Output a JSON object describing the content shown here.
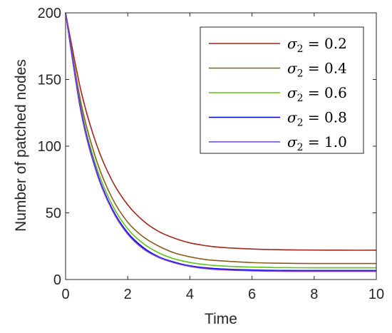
{
  "chart_data": {
    "type": "line",
    "xlabel": "Time",
    "ylabel": "Number of patched nodes",
    "xlim": [
      0,
      10
    ],
    "ylim": [
      0,
      200
    ],
    "xticks": [
      0,
      2,
      4,
      6,
      8,
      10
    ],
    "yticks": [
      0,
      50,
      100,
      150,
      200
    ],
    "grid": false,
    "legend_position": "top-right",
    "x": [
      0,
      0.5,
      1,
      1.5,
      2,
      2.5,
      3,
      3.5,
      4,
      4.5,
      5,
      6,
      7,
      8,
      9,
      10
    ],
    "series": [
      {
        "name": "σ₂ = 0.2",
        "color": "#a0291f",
        "values": [
          200,
          141,
          101,
          74,
          56,
          44,
          36,
          31,
          27.5,
          25.4,
          24.1,
          22.9,
          22.3,
          22.1,
          22.0,
          22.0
        ]
      },
      {
        "name": "σ₂ = 0.4",
        "color": "#8b5a1e",
        "values": [
          200,
          132,
          89,
          61,
          43,
          32,
          25,
          20,
          17,
          15,
          14,
          12.7,
          12.2,
          12.0,
          12.0,
          12.0
        ]
      },
      {
        "name": "σ₂ = 0.6",
        "color": "#5fc31a",
        "values": [
          200,
          128,
          84,
          56,
          38,
          27,
          20,
          15.5,
          12.8,
          11.2,
          10.2,
          9.3,
          8.9,
          8.8,
          8.8,
          8.8
        ]
      },
      {
        "name": "σ₂ = 0.8",
        "color": "#0000d4",
        "values": [
          200,
          126,
          81,
          53,
          35,
          24,
          17,
          13,
          10.3,
          8.8,
          7.9,
          7.1,
          6.8,
          6.7,
          6.7,
          6.7
        ]
      },
      {
        "name": "σ₂ = 1.0",
        "color": "#7a3fe0",
        "values": [
          200,
          125,
          80,
          52,
          34,
          23,
          16.5,
          12.5,
          9.8,
          8.2,
          7.3,
          6.5,
          6.2,
          6.1,
          6.1,
          6.1
        ]
      }
    ],
    "legend_labels": [
      {
        "sym": "σ",
        "sub": "2",
        "rest": " = 0.2"
      },
      {
        "sym": "σ",
        "sub": "2",
        "rest": " = 0.4"
      },
      {
        "sym": "σ",
        "sub": "2",
        "rest": " = 0.6"
      },
      {
        "sym": "σ",
        "sub": "2",
        "rest": " = 0.8"
      },
      {
        "sym": "σ",
        "sub": "2",
        "rest": " = 1.0"
      }
    ]
  }
}
